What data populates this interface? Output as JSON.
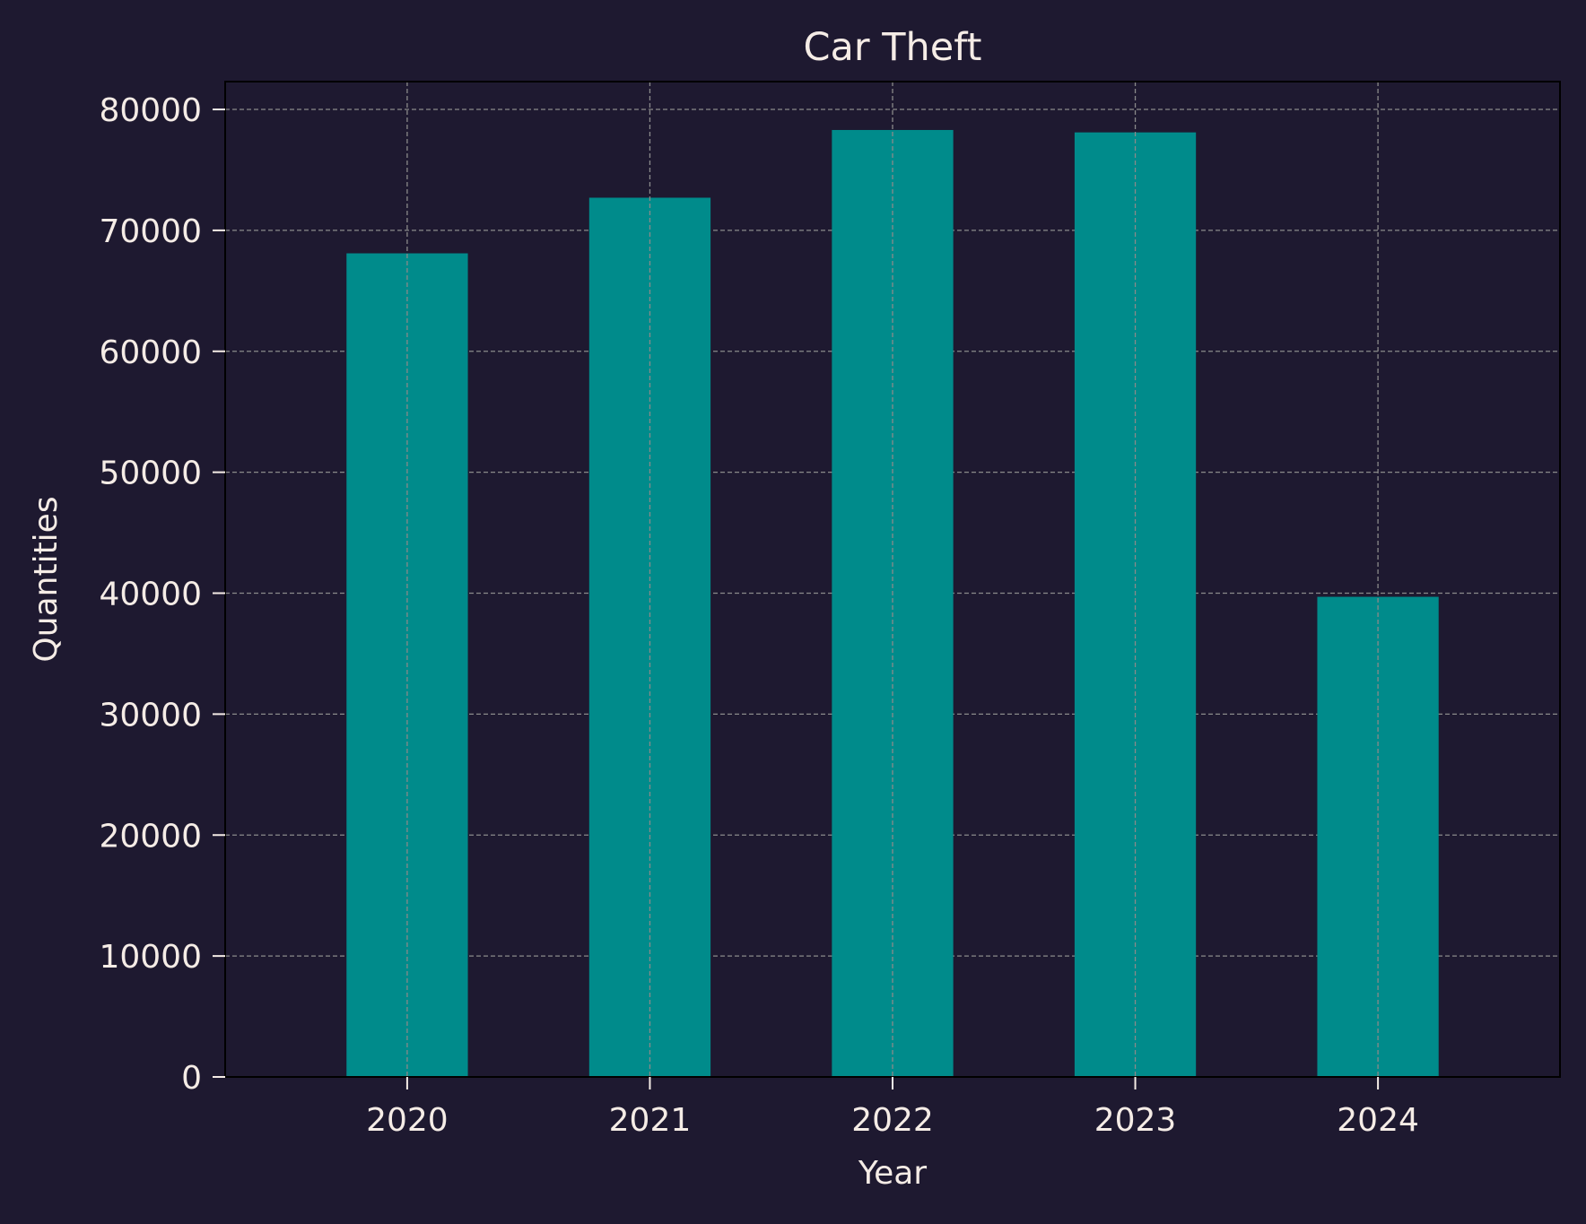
{
  "chart_data": {
    "type": "bar",
    "title": "Car Theft",
    "xlabel": "Year",
    "ylabel": "Quantities",
    "categories": [
      "2020",
      "2021",
      "2022",
      "2023",
      "2024"
    ],
    "values": [
      68100,
      72700,
      78300,
      78100,
      39700
    ],
    "ylim": [
      0,
      82300
    ],
    "yticks": [
      0,
      10000,
      20000,
      30000,
      40000,
      50000,
      60000,
      70000,
      80000
    ],
    "grid": true,
    "legend": "none",
    "colors": {
      "background": "#1e1930",
      "bar": "#008b8b",
      "grid": "#8a8a8a",
      "axes": "#000000",
      "text": "#f5ece6"
    }
  }
}
